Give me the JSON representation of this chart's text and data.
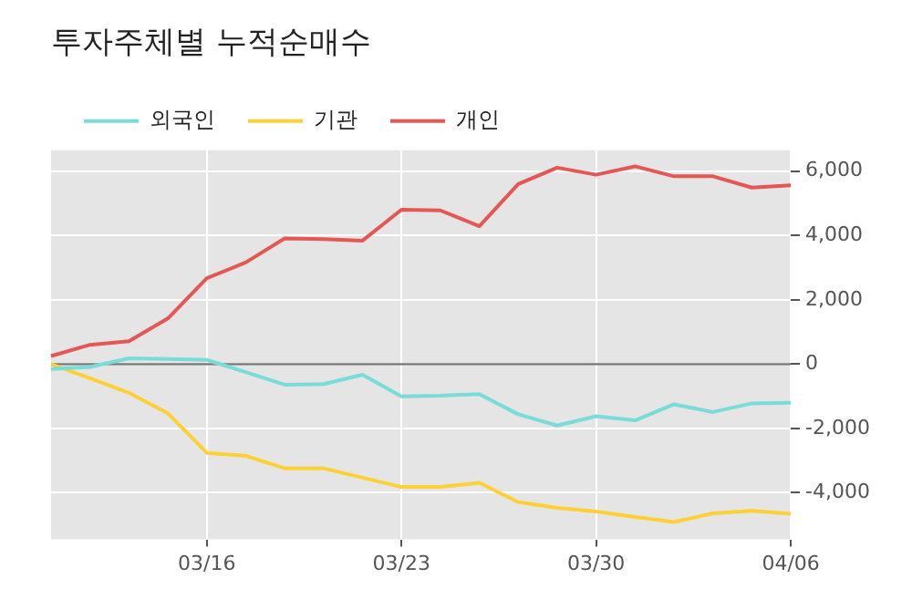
{
  "chart_data": {
    "type": "line",
    "title": "투자주체별 누적순매수",
    "categories": [
      null,
      null,
      null,
      null,
      "03/16",
      null,
      null,
      null,
      null,
      "03/23",
      null,
      null,
      null,
      null,
      "03/30",
      null,
      null,
      null,
      null,
      "04/06"
    ],
    "series": [
      {
        "name": "외국인",
        "color": "#7adcd8",
        "values": [
          -150,
          -90,
          180,
          160,
          130,
          -250,
          -640,
          -620,
          -330,
          -1000,
          -980,
          -930,
          -1560,
          -1910,
          -1620,
          -1750,
          -1250,
          -1490,
          -1220,
          -1200
        ]
      },
      {
        "name": "기관",
        "color": "#fdd136",
        "values": [
          0,
          -440,
          -890,
          -1530,
          -2760,
          -2850,
          -3240,
          -3240,
          -3530,
          -3820,
          -3820,
          -3690,
          -4290,
          -4470,
          -4580,
          -4750,
          -4910,
          -4640,
          -4560,
          -4650
        ]
      },
      {
        "name": "개인",
        "color": "#e45756",
        "values": [
          250,
          600,
          710,
          1420,
          2670,
          3160,
          3910,
          3890,
          3840,
          4800,
          4780,
          4290,
          5600,
          6110,
          5890,
          6150,
          5840,
          5840,
          5490,
          5560
        ]
      }
    ],
    "ylim": [
      -5450,
      6650
    ],
    "yticks": [
      {
        "value": -4000,
        "label": "-4,000"
      },
      {
        "value": -2000,
        "label": "-2,000"
      },
      0,
      {
        "value": 2000,
        "label": "2,000"
      },
      {
        "value": 4000,
        "label": "4,000"
      },
      {
        "value": 6000,
        "label": "6,000"
      }
    ],
    "ref_lines": [
      {
        "axis": "y",
        "value": 0,
        "color": "#777777"
      }
    ],
    "grid": true,
    "legend": "top left",
    "marker": "none",
    "line_style": "solid"
  }
}
